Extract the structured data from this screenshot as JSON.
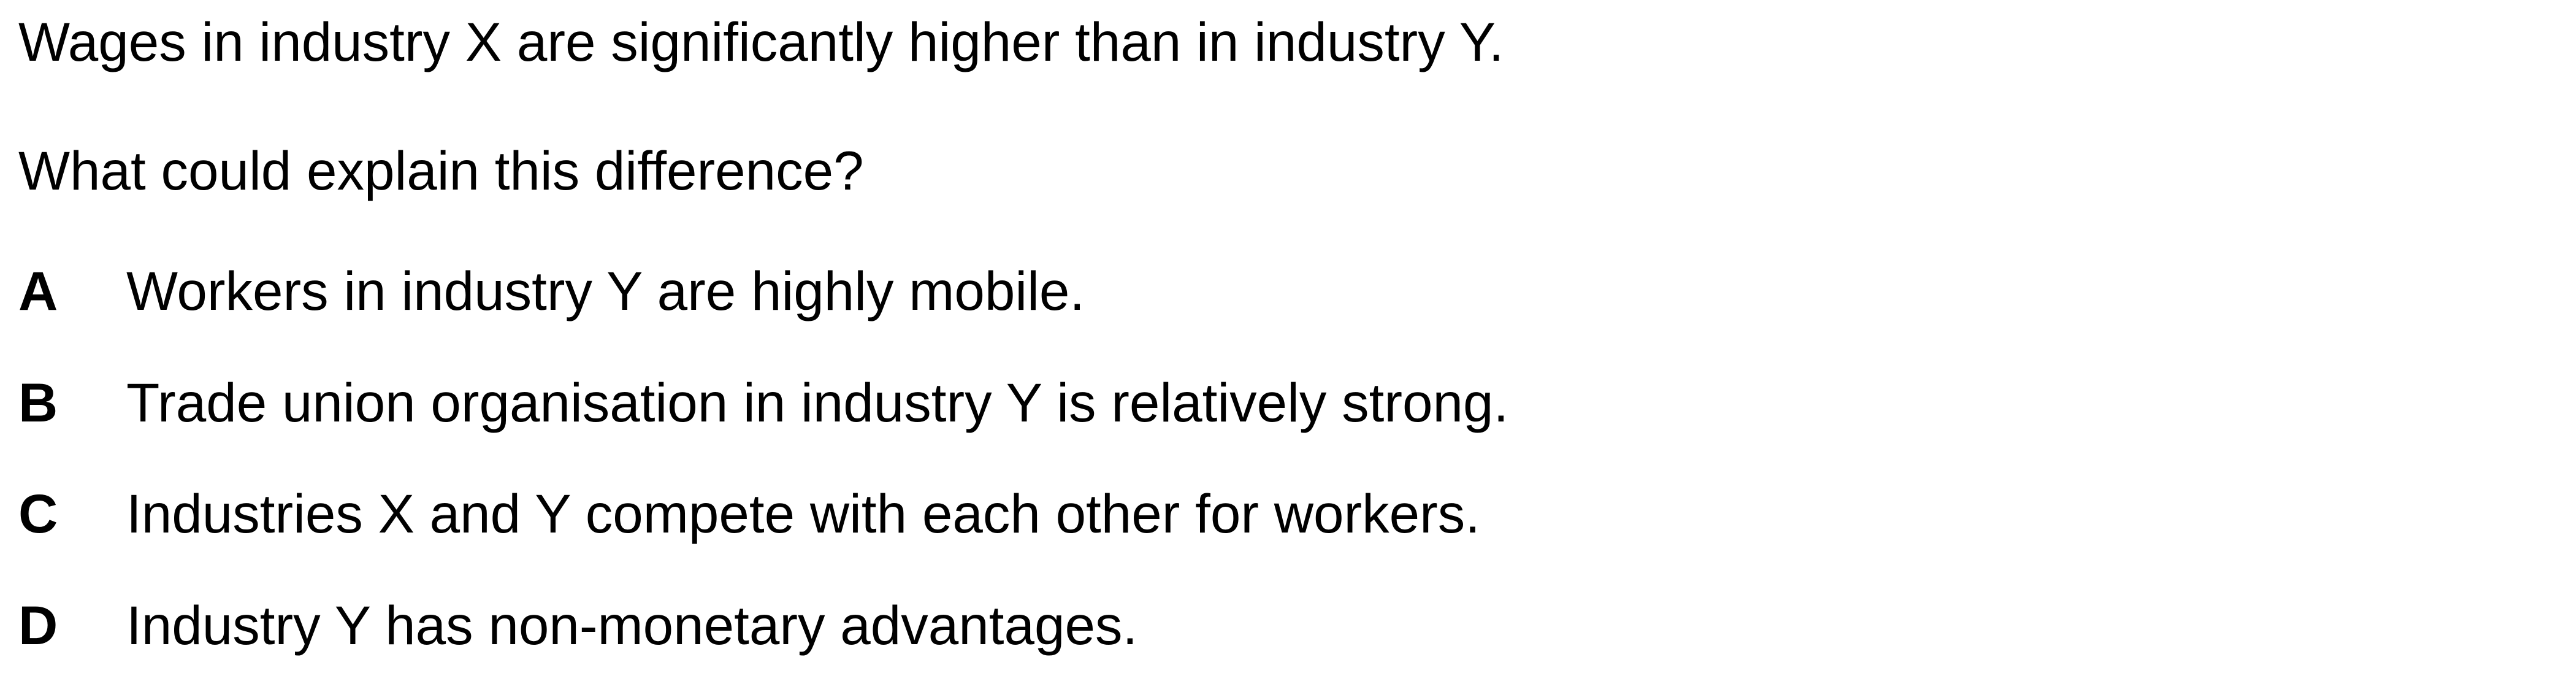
{
  "question": {
    "stem": "Wages in industry X are significantly higher than in industry Y.",
    "prompt": "What could explain this difference?"
  },
  "options": [
    {
      "letter": "A",
      "text": "Workers in industry Y are highly mobile."
    },
    {
      "letter": "B",
      "text": "Trade union organisation in industry Y is relatively strong."
    },
    {
      "letter": "C",
      "text": "Industries X and Y compete with each other for workers."
    },
    {
      "letter": "D",
      "text": "Industry Y has non-monetary advantages."
    }
  ]
}
